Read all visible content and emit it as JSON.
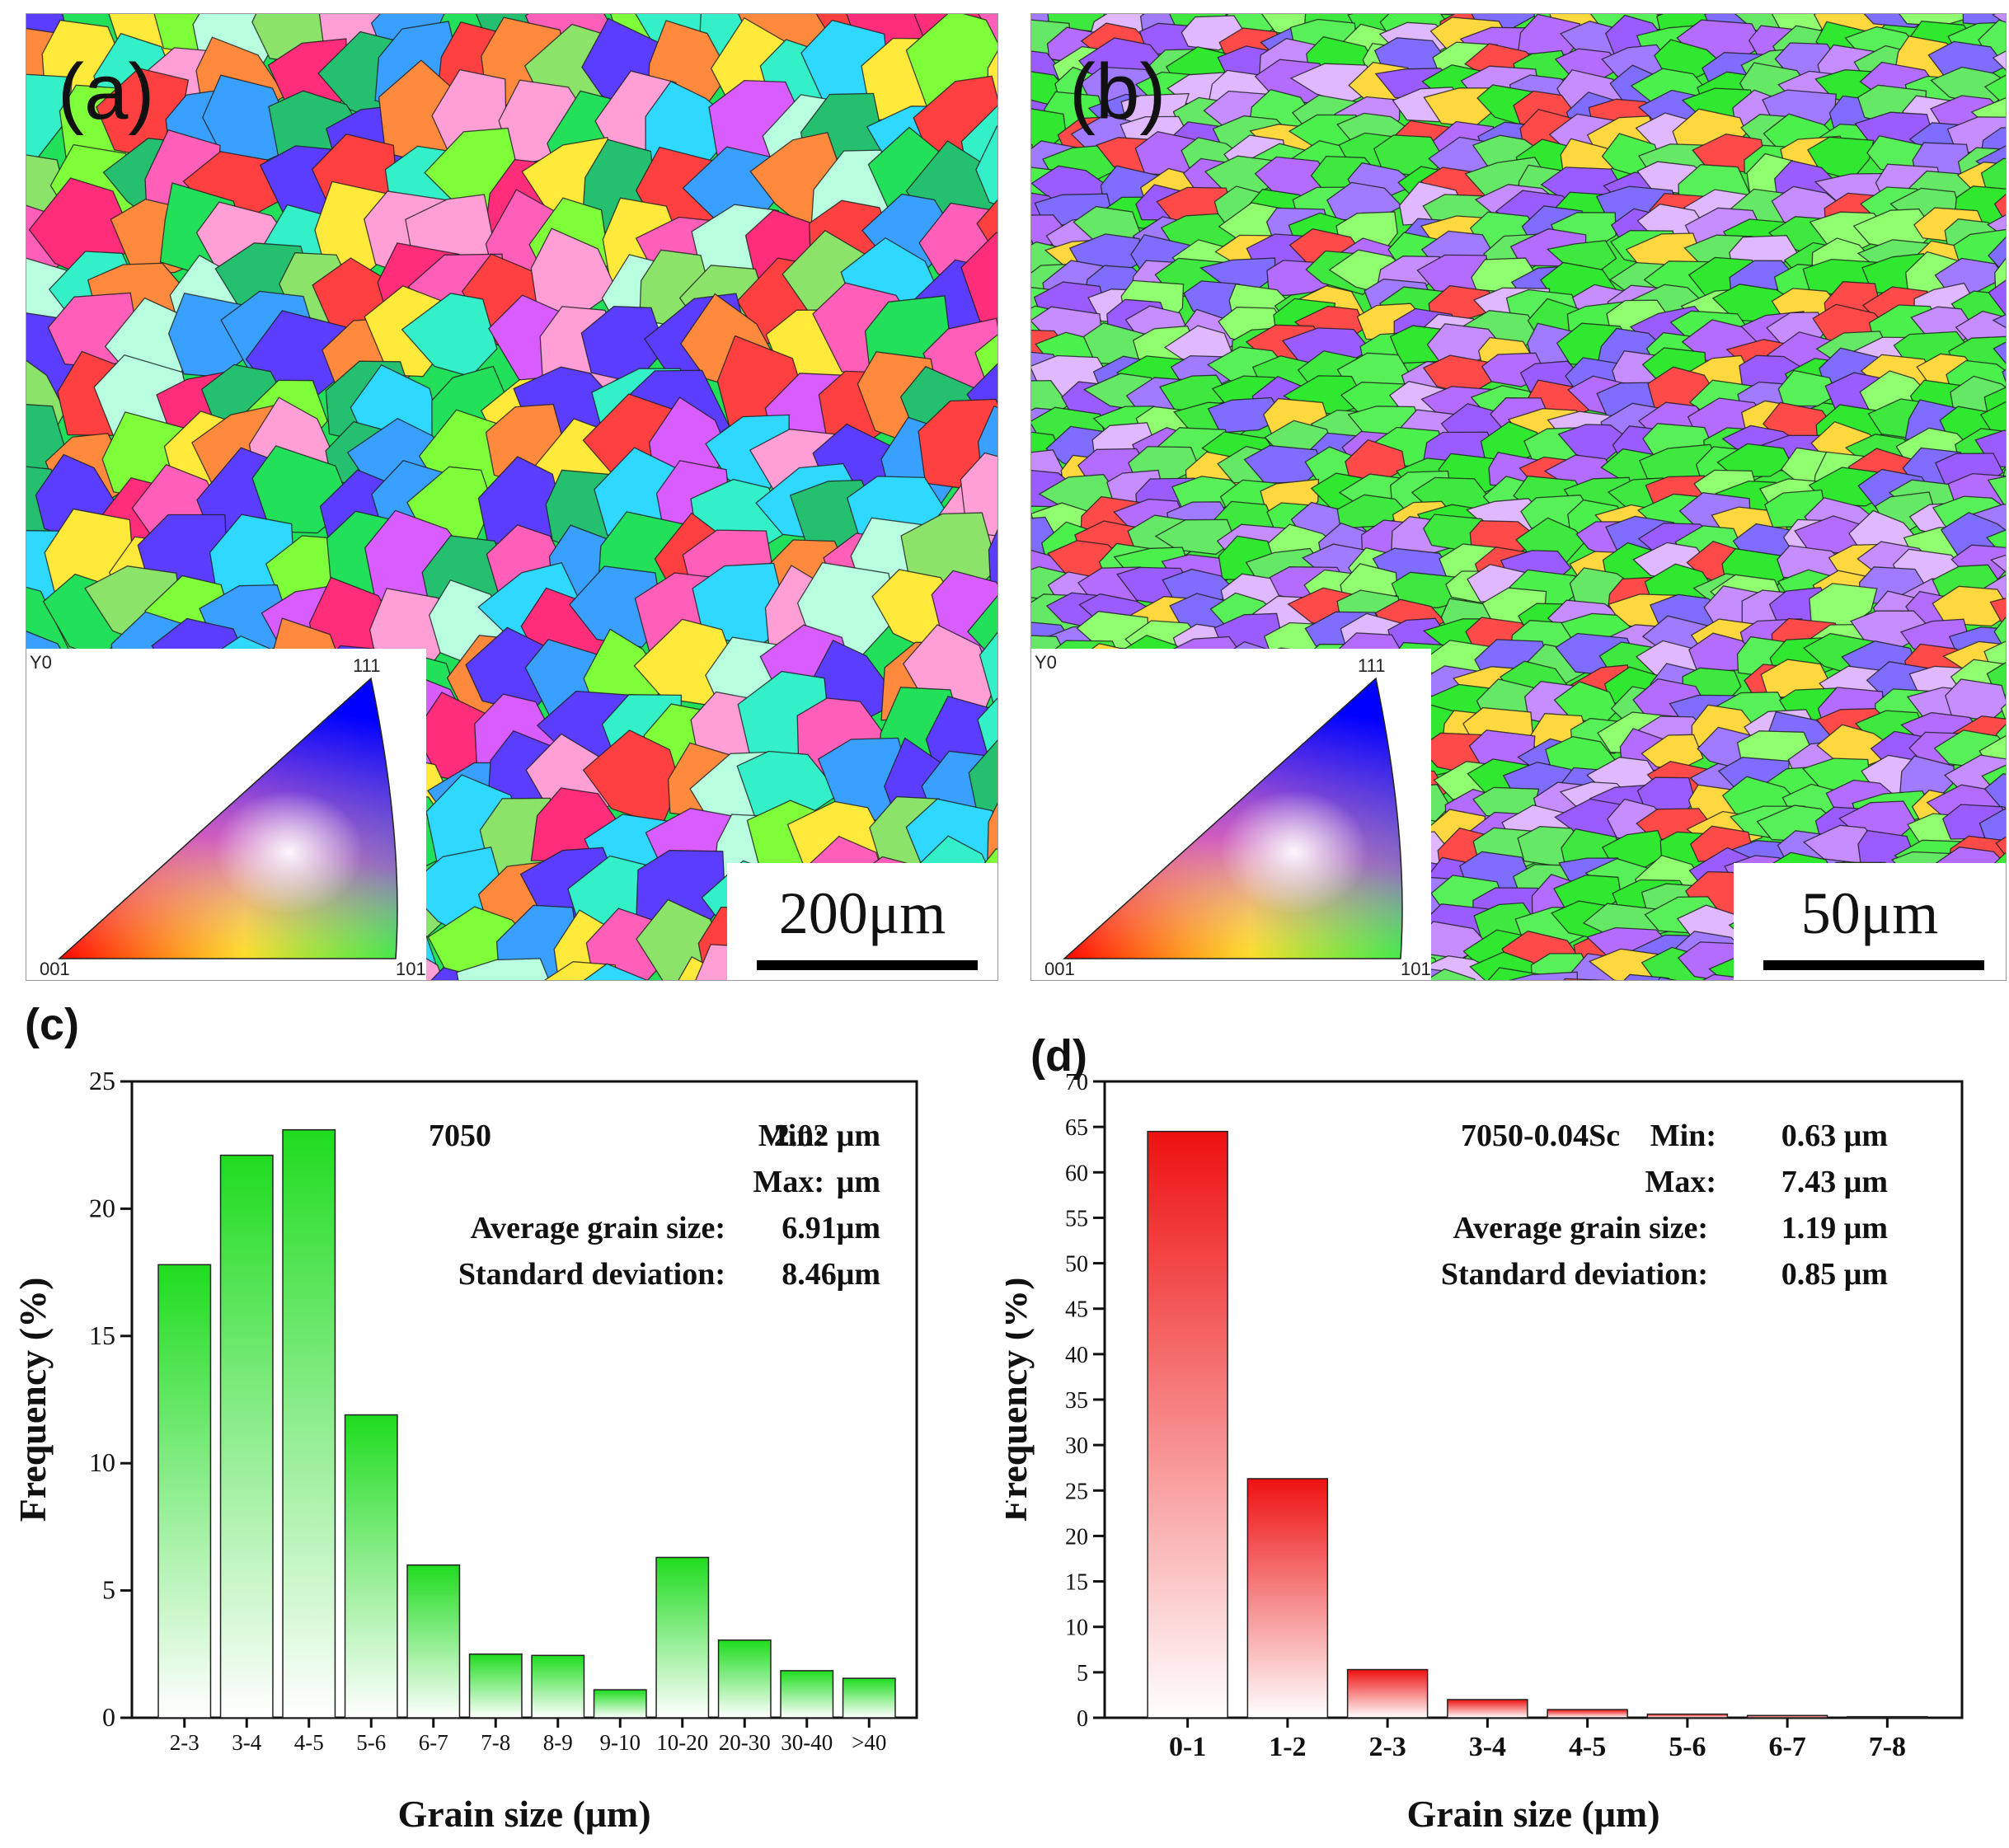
{
  "panels": {
    "a": {
      "label": "(a)",
      "scale_label": "200μm"
    },
    "b": {
      "label": "(b)",
      "scale_label": "50μm"
    }
  },
  "ipf_legend": {
    "axis_label": "Y0",
    "corners": {
      "top": "111",
      "left": "001",
      "right": "101"
    }
  },
  "chart_data": [
    {
      "panel_label": "(c)",
      "type": "bar",
      "title": "7050",
      "xlabel": "Grain size (μm)",
      "ylabel": "Frequency (%)",
      "ylim": [
        0,
        25
      ],
      "yticks": [
        0,
        5,
        10,
        15,
        20,
        25
      ],
      "categories": [
        "2-3",
        "3-4",
        "4-5",
        "5-6",
        "6-7",
        "7-8",
        "8-9",
        "9-10",
        "10-20",
        "20-30",
        "30-40",
        ">40"
      ],
      "values": [
        17.8,
        22.1,
        23.1,
        11.9,
        6.0,
        2.5,
        2.45,
        1.1,
        6.3,
        3.05,
        1.85,
        1.55
      ],
      "bar_color": "#1fdc1f",
      "stats": [
        {
          "label": "Min:",
          "value": "2.02 μm"
        },
        {
          "label": "Max:",
          "value": "μm"
        },
        {
          "label": "Average grain size:",
          "value": "6.91μm"
        },
        {
          "label": "Standard deviation:",
          "value": "8.46μm"
        }
      ]
    },
    {
      "panel_label": "(d)",
      "type": "bar",
      "title": "7050-0.04Sc",
      "xlabel": "Grain size (μm)",
      "ylabel": "Frequency (%)",
      "ylim": [
        0,
        70
      ],
      "yticks": [
        0,
        5,
        10,
        15,
        20,
        25,
        30,
        35,
        40,
        45,
        50,
        55,
        60,
        65,
        70
      ],
      "categories": [
        "0-1",
        "1-2",
        "2-3",
        "3-4",
        "4-5",
        "5-6",
        "6-7",
        "7-8"
      ],
      "values": [
        64.5,
        26.3,
        5.3,
        2.0,
        0.9,
        0.4,
        0.25,
        0.12
      ],
      "bar_color": "#ee1111",
      "stats": [
        {
          "label": "Min:",
          "value": "0.63 μm"
        },
        {
          "label": "Max:",
          "value": "7.43 μm"
        },
        {
          "label": "Average grain size:",
          "value": "1.19 μm"
        },
        {
          "label": "Standard deviation:",
          "value": "0.85 μm"
        }
      ]
    }
  ]
}
